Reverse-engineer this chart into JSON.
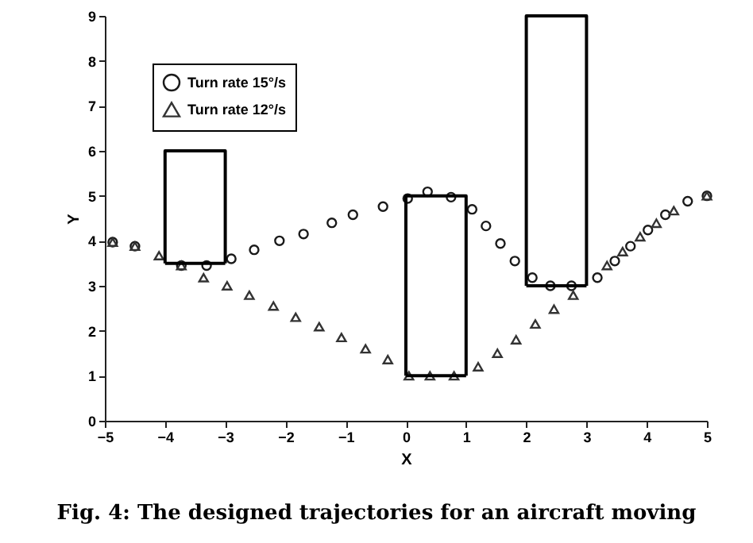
{
  "chart_data": {
    "type": "scatter",
    "xlabel": "X",
    "ylabel": "Y",
    "xlim": [
      -5,
      5
    ],
    "ylim": [
      0,
      9
    ],
    "xticks": [
      -5,
      -4,
      -3,
      -2,
      -1,
      0,
      1,
      2,
      3,
      4,
      5
    ],
    "yticks": [
      0,
      1,
      2,
      3,
      4,
      5,
      6,
      7,
      8,
      9
    ],
    "grid": false,
    "legend": "top left",
    "annotations": [
      "Fig. 4: The designed trajectories for an aircraft moving"
    ],
    "series": [
      {
        "name": "Turn rate 15°/s",
        "type": "scatter",
        "marker": "circle",
        "color": "#1a1a1a",
        "x": [
          -4.87,
          -4.5,
          -3.73,
          -3.31,
          -2.9,
          -2.52,
          -2.1,
          -1.7,
          -1.23,
          -0.88,
          -0.38,
          0.03,
          0.36,
          0.75,
          1.1,
          1.33,
          1.57,
          1.81,
          2.1,
          2.4,
          2.75,
          3.18,
          3.47,
          3.73,
          4.02,
          4.31,
          4.68,
          5.0
        ],
        "values": [
          3.97,
          3.88,
          3.45,
          3.45,
          3.6,
          3.8,
          4.0,
          4.15,
          4.4,
          4.58,
          4.76,
          4.94,
          5.09,
          4.97,
          4.7,
          4.33,
          3.94,
          3.55,
          3.18,
          3.0,
          3.0,
          3.18,
          3.55,
          3.88,
          4.24,
          4.58,
          4.88,
          5.0
        ]
      },
      {
        "name": "Turn rate 12°/s",
        "type": "scatter",
        "marker": "triangle",
        "color": "#333333",
        "x": [
          -4.87,
          -4.5,
          -4.1,
          -3.73,
          -3.36,
          -2.97,
          -2.6,
          -2.2,
          -1.83,
          -1.44,
          -1.07,
          -0.67,
          -0.3,
          0.05,
          0.4,
          0.8,
          1.2,
          1.52,
          1.83,
          2.15,
          2.46,
          2.78,
          3.34,
          3.6,
          3.89,
          4.16,
          4.45,
          5.0
        ],
        "values": [
          3.97,
          3.88,
          3.67,
          3.45,
          3.18,
          3.0,
          2.79,
          2.55,
          2.3,
          2.09,
          1.85,
          1.6,
          1.36,
          1.0,
          1.0,
          1.0,
          1.2,
          1.5,
          1.8,
          2.15,
          2.48,
          2.79,
          3.45,
          3.76,
          4.09,
          4.39,
          4.67,
          5.0
        ]
      },
      {
        "type": "line",
        "color": "#000000",
        "x": [
          -4,
          -4,
          -3,
          -3
        ],
        "values": [
          3.5,
          6,
          6,
          3.5
        ]
      },
      {
        "type": "line",
        "color": "#000000",
        "x": [
          -4,
          -3
        ],
        "values": [
          3.5,
          3.5
        ]
      },
      {
        "type": "line",
        "color": "#000000",
        "x": [
          0,
          0,
          1,
          1
        ],
        "values": [
          1,
          5,
          5,
          1
        ]
      },
      {
        "type": "line",
        "color": "#000000",
        "x": [
          0,
          1
        ],
        "values": [
          1,
          1
        ]
      },
      {
        "type": "line",
        "color": "#000000",
        "x": [
          2,
          2,
          3,
          3
        ],
        "values": [
          3,
          9,
          9,
          3
        ]
      },
      {
        "type": "line",
        "color": "#000000",
        "x": [
          2,
          3
        ],
        "values": [
          3,
          3
        ]
      }
    ]
  }
}
